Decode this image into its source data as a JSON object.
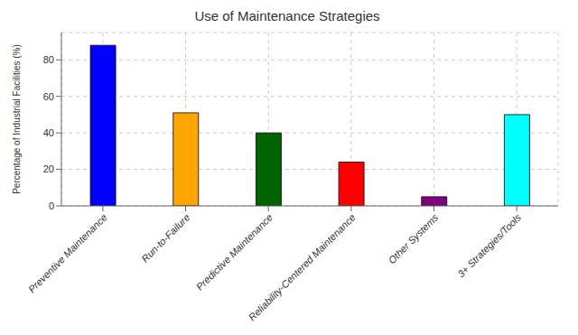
{
  "chart_data": {
    "type": "bar",
    "title": "Use of Maintenance Strategies",
    "ylabel": "Percentage of Industrial Facilities (%)",
    "categories": [
      "Preventive Maintenance",
      "Run-to-Failure",
      "Predictive Maintenance",
      "Reliability-Centered Maintenance",
      "Other Systems",
      "3+ Strategies/Tools"
    ],
    "values": [
      88,
      51,
      40,
      24,
      5,
      50
    ],
    "colors": [
      "#0000FF",
      "#FFA500",
      "#006400",
      "#FF0000",
      "#800080",
      "#00FFFF"
    ],
    "ylim": [
      0,
      95
    ],
    "yticks": [
      0,
      20,
      40,
      60,
      80
    ],
    "grid": true
  }
}
